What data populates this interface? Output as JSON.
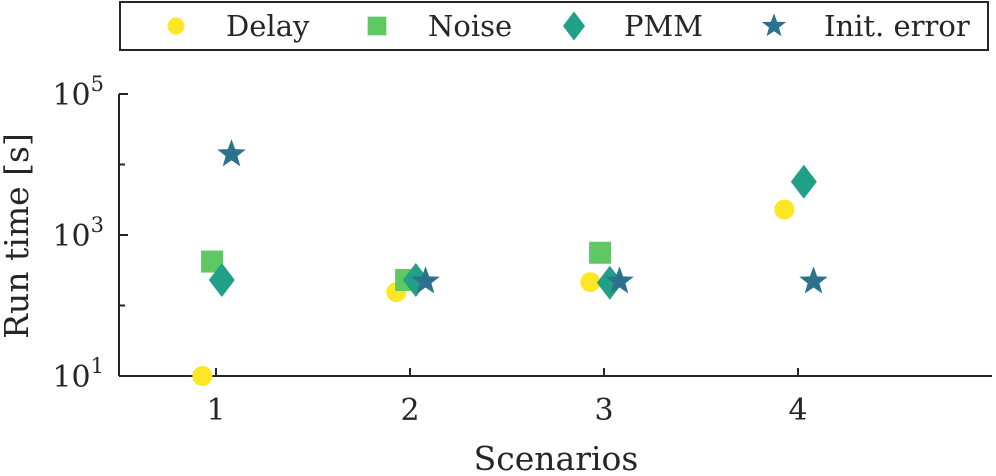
{
  "chart_data": {
    "type": "scatter",
    "xlabel": "Scenarios",
    "ylabel": "Run time [s]",
    "yscale": "log",
    "xlim": [
      0.5,
      5.0
    ],
    "ylim": [
      10,
      100000
    ],
    "categories": [
      "1",
      "2",
      "3",
      "4"
    ],
    "x_ticks": [
      "1",
      "2",
      "3",
      "4"
    ],
    "y_ticks": [
      {
        "value": 10,
        "base": "10",
        "exp": "1"
      },
      {
        "value": 1000,
        "base": "10",
        "exp": "3"
      },
      {
        "value": 100000,
        "base": "10",
        "exp": "5"
      }
    ],
    "grid": false,
    "legend_position": "top, outside, horizontal",
    "series": [
      {
        "name": "Delay",
        "marker": "circle",
        "color": "#fde725",
        "points": [
          {
            "x": 0.93,
            "y": 10
          },
          {
            "x": 1.93,
            "y": 155
          },
          {
            "x": 2.93,
            "y": 215
          },
          {
            "x": 3.93,
            "y": 2300
          }
        ]
      },
      {
        "name": "Noise",
        "marker": "square",
        "color": "#5ec962",
        "points": [
          {
            "x": 0.98,
            "y": 420
          },
          {
            "x": 1.98,
            "y": 230
          },
          {
            "x": 2.98,
            "y": 560
          }
        ]
      },
      {
        "name": "PMM",
        "marker": "diamond",
        "color": "#21a088",
        "points": [
          {
            "x": 1.03,
            "y": 230
          },
          {
            "x": 2.03,
            "y": 230
          },
          {
            "x": 3.03,
            "y": 210
          },
          {
            "x": 4.03,
            "y": 5700
          }
        ]
      },
      {
        "name": "Init. error",
        "marker": "star",
        "color": "#2c728e",
        "points": [
          {
            "x": 1.08,
            "y": 14000
          },
          {
            "x": 2.08,
            "y": 220
          },
          {
            "x": 3.08,
            "y": 220
          },
          {
            "x": 4.08,
            "y": 220
          }
        ]
      }
    ]
  }
}
